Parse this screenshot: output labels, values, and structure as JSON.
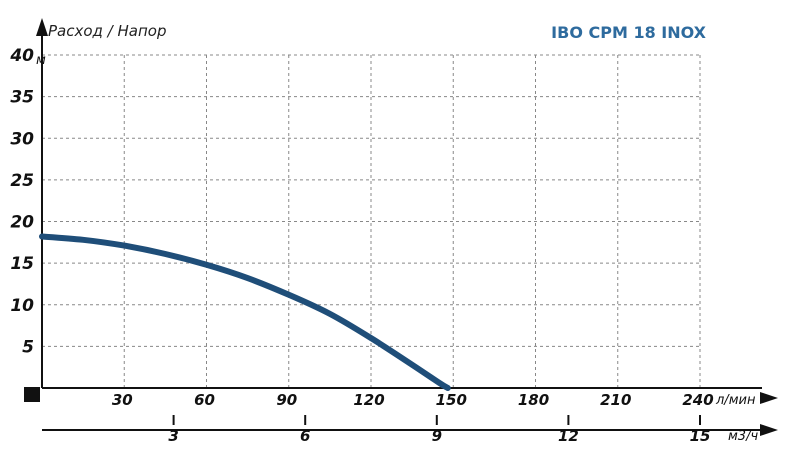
{
  "chart_data": {
    "type": "line",
    "title": "IBO CPM 18 INOX",
    "ylabel": "Расход / Напор",
    "y_unit": "м",
    "x_unit": "л/мин",
    "x2_unit": "м3/ч",
    "xlim": [
      0,
      240
    ],
    "ylim": [
      0,
      40
    ],
    "x_ticks": [
      30,
      60,
      90,
      120,
      150,
      180,
      210,
      240
    ],
    "y_ticks": [
      5,
      10,
      15,
      20,
      25,
      30,
      35,
      40
    ],
    "x2_ticks": [
      3,
      6,
      9,
      12,
      15
    ],
    "grid": true,
    "series": [
      {
        "color": "#1f4e79",
        "x": [
          0,
          15,
          30,
          45,
          60,
          75,
          90,
          105,
          120,
          135,
          145,
          148
        ],
        "y": [
          18.2,
          17.8,
          17.1,
          16.1,
          14.8,
          13.2,
          11.2,
          8.9,
          6.0,
          2.8,
          0.6,
          0
        ]
      }
    ]
  },
  "colors": {
    "curve": "#1f4e79",
    "title": "#2e6b9e",
    "grid": "#888888"
  }
}
